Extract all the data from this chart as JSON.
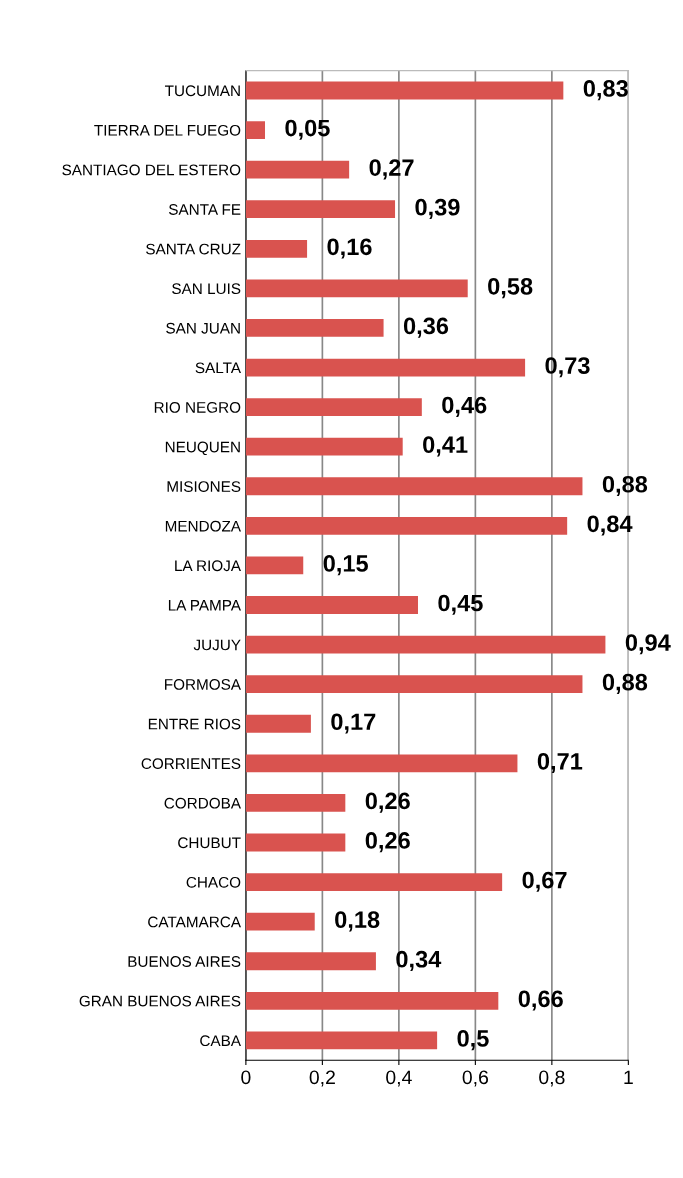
{
  "chart_data": {
    "type": "bar",
    "orientation": "horizontal",
    "categories": [
      "TUCUMAN",
      "TIERRA DEL FUEGO",
      "SANTIAGO DEL ESTERO",
      "SANTA FE",
      "SANTA CRUZ",
      "SAN LUIS",
      "SAN JUAN",
      "SALTA",
      "RIO NEGRO",
      "NEUQUEN",
      "MISIONES",
      "MENDOZA",
      "LA RIOJA",
      "LA PAMPA",
      "JUJUY",
      "FORMOSA",
      "ENTRE RIOS",
      "CORRIENTES",
      "CORDOBA",
      "CHUBUT",
      "CHACO",
      "CATAMARCA",
      "BUENOS AIRES",
      "GRAN BUENOS AIRES",
      "CABA"
    ],
    "values": [
      0.83,
      0.05,
      0.27,
      0.39,
      0.16,
      0.58,
      0.36,
      0.73,
      0.46,
      0.41,
      0.88,
      0.84,
      0.15,
      0.45,
      0.94,
      0.88,
      0.17,
      0.71,
      0.26,
      0.26,
      0.67,
      0.18,
      0.34,
      0.66,
      0.5
    ],
    "value_labels": [
      "0,83",
      "0,05",
      "0,27",
      "0,39",
      "0,16",
      "0,58",
      "0,36",
      "0,73",
      "0,46",
      "0,41",
      "0,88",
      "0,84",
      "0,15",
      "0,45",
      "0,94",
      "0,88",
      "0,17",
      "0,71",
      "0,26",
      "0,26",
      "0,67",
      "0,18",
      "0,34",
      "0,66",
      "0,5"
    ],
    "color": "#d9534f",
    "xlim": [
      0,
      1
    ],
    "xticks": [
      0,
      {
        "value": 0.2,
        "label": "0,2"
      },
      {
        "value": 0.4,
        "label": "0,4"
      },
      {
        "value": 0.6,
        "label": "0,6"
      },
      {
        "value": 0.8,
        "label": "0,8"
      },
      1
    ],
    "grid": "x",
    "legend": false
  }
}
